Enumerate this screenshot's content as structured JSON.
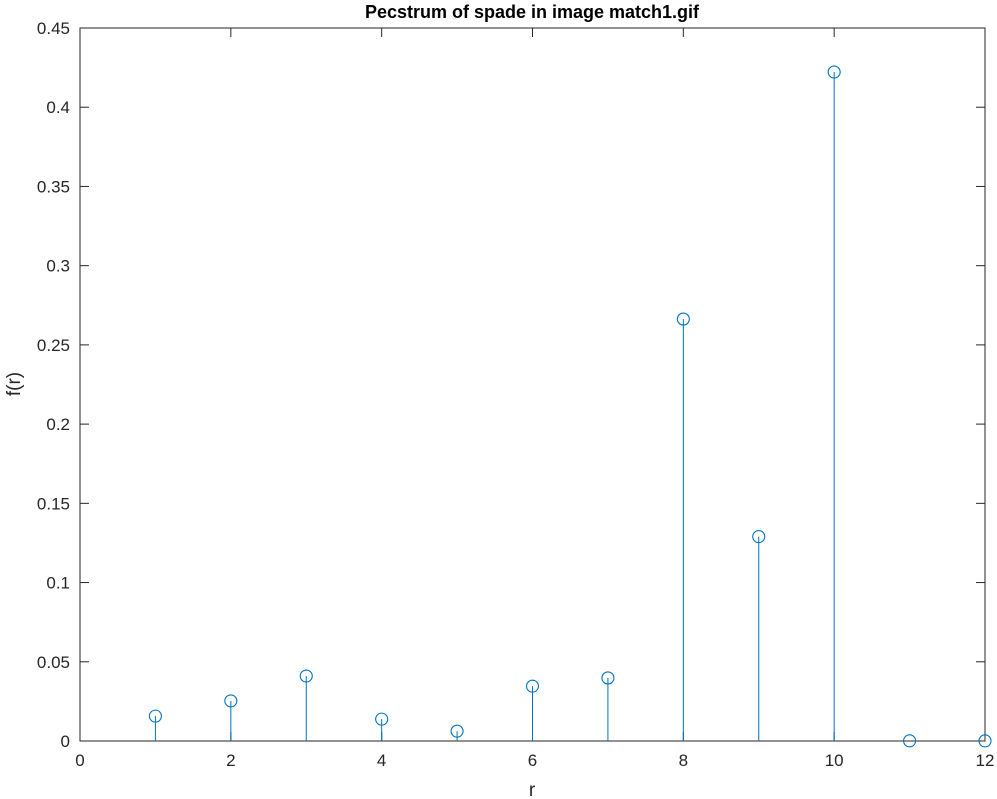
{
  "chart_data": {
    "type": "stem",
    "title": "Pecstrum of spade in image match1.gif",
    "xlabel": "r",
    "ylabel": "f(r)",
    "xlim": [
      0,
      12
    ],
    "ylim": [
      0,
      0.45
    ],
    "xticks": [
      "0",
      "2",
      "4",
      "6",
      "8",
      "10",
      "12"
    ],
    "yticks": [
      "0",
      "0.05",
      "0.1",
      "0.15",
      "0.2",
      "0.25",
      "0.3",
      "0.35",
      "0.4",
      "0.45"
    ],
    "grid": false,
    "box": true,
    "marker": "circle-open",
    "color": "#0072BD",
    "x": [
      1,
      2,
      3,
      4,
      5,
      6,
      7,
      8,
      9,
      10,
      11,
      12
    ],
    "y": [
      0.0157,
      0.0253,
      0.041,
      0.0138,
      0.0062,
      0.0346,
      0.0398,
      0.2663,
      0.129,
      0.4222,
      0.0001,
      0.0001
    ]
  }
}
